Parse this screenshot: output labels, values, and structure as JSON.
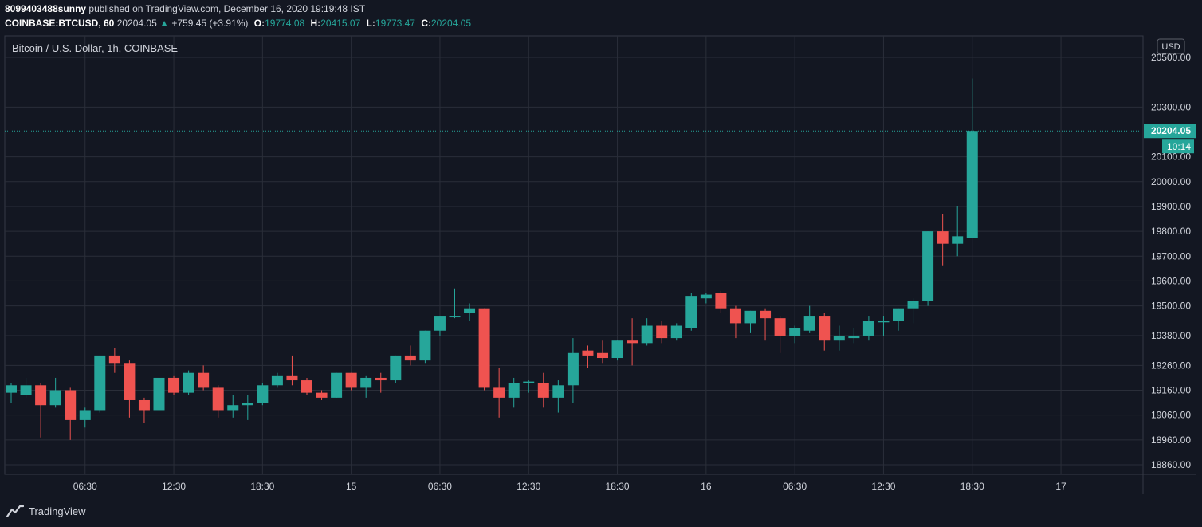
{
  "header": {
    "publisher_user": "8099403488sunny",
    "published_text": "published on TradingView.com, December 16, 2020 19:19:48 IST",
    "symbol_line": "COINBASE:BTCUSD, 60",
    "last": "20204.05",
    "change": "+759.45 (+3.91%)",
    "o_label": "O:",
    "o_value": "19774.08",
    "h_label": "H:",
    "h_value": "20415.07",
    "l_label": "L:",
    "l_value": "19773.47",
    "c_label": "C:",
    "c_value": "20204.05"
  },
  "footer": {
    "brand": "TradingView"
  },
  "colors": {
    "up": "#26a69a",
    "down": "#ef5350",
    "background": "#131722",
    "grid": "#2a2e39"
  },
  "chart_data": {
    "type": "candlestick",
    "title": "Bitcoin / U.S. Dollar, 1h, COINBASE",
    "currency_label": "USD",
    "last_price": "20204.05",
    "countdown": "10:14",
    "ylim": [
      18800,
      20570
    ],
    "y_ticks": [
      {
        "v": 20500,
        "label": "20500.00"
      },
      {
        "v": 20300,
        "label": "20300.00"
      },
      {
        "v": 20100,
        "label": "20100.00"
      },
      {
        "v": 20000,
        "label": "20000.00"
      },
      {
        "v": 19900,
        "label": "19900.00"
      },
      {
        "v": 19800,
        "label": "19800.00"
      },
      {
        "v": 19700,
        "label": "19700.00"
      },
      {
        "v": 19600,
        "label": "19600.00"
      },
      {
        "v": 19500,
        "label": "19500.00"
      },
      {
        "v": 19380,
        "label": "19380.00"
      },
      {
        "v": 19260,
        "label": "19260.00"
      },
      {
        "v": 19160,
        "label": "19160.00"
      },
      {
        "v": 19060,
        "label": "19060.00"
      },
      {
        "v": 18960,
        "label": "18960.00"
      },
      {
        "v": 18860,
        "label": "18860.00"
      }
    ],
    "x_ticks": [
      {
        "i": 5,
        "label": "06:30"
      },
      {
        "i": 11,
        "label": "12:30"
      },
      {
        "i": 17,
        "label": "18:30"
      },
      {
        "i": 23,
        "label": "15"
      },
      {
        "i": 29,
        "label": "06:30"
      },
      {
        "i": 35,
        "label": "12:30"
      },
      {
        "i": 41,
        "label": "18:30"
      },
      {
        "i": 47,
        "label": "16"
      },
      {
        "i": 53,
        "label": "06:30"
      },
      {
        "i": 59,
        "label": "12:30"
      },
      {
        "i": 65,
        "label": "18:30"
      },
      {
        "i": 71,
        "label": "17"
      }
    ],
    "candles": [
      {
        "o": 19150,
        "h": 19190,
        "l": 19110,
        "c": 19180
      },
      {
        "o": 19140,
        "h": 19210,
        "l": 19130,
        "c": 19180
      },
      {
        "o": 19180,
        "h": 19190,
        "l": 18970,
        "c": 19100
      },
      {
        "o": 19100,
        "h": 19210,
        "l": 19090,
        "c": 19160
      },
      {
        "o": 19160,
        "h": 19170,
        "l": 18960,
        "c": 19040
      },
      {
        "o": 19040,
        "h": 19090,
        "l": 19010,
        "c": 19080
      },
      {
        "o": 19080,
        "h": 19300,
        "l": 19070,
        "c": 19300
      },
      {
        "o": 19300,
        "h": 19330,
        "l": 19230,
        "c": 19270
      },
      {
        "o": 19270,
        "h": 19280,
        "l": 19050,
        "c": 19120
      },
      {
        "o": 19120,
        "h": 19130,
        "l": 19030,
        "c": 19080
      },
      {
        "o": 19080,
        "h": 19210,
        "l": 19080,
        "c": 19210
      },
      {
        "o": 19210,
        "h": 19220,
        "l": 19140,
        "c": 19150
      },
      {
        "o": 19150,
        "h": 19240,
        "l": 19140,
        "c": 19230
      },
      {
        "o": 19230,
        "h": 19260,
        "l": 19160,
        "c": 19170
      },
      {
        "o": 19170,
        "h": 19180,
        "l": 19050,
        "c": 19080
      },
      {
        "o": 19080,
        "h": 19140,
        "l": 19050,
        "c": 19100
      },
      {
        "o": 19100,
        "h": 19140,
        "l": 19040,
        "c": 19110
      },
      {
        "o": 19110,
        "h": 19190,
        "l": 19100,
        "c": 19180
      },
      {
        "o": 19180,
        "h": 19230,
        "l": 19170,
        "c": 19220
      },
      {
        "o": 19220,
        "h": 19300,
        "l": 19180,
        "c": 19200
      },
      {
        "o": 19200,
        "h": 19210,
        "l": 19140,
        "c": 19150
      },
      {
        "o": 19150,
        "h": 19160,
        "l": 19120,
        "c": 19130
      },
      {
        "o": 19130,
        "h": 19230,
        "l": 19130,
        "c": 19230
      },
      {
        "o": 19230,
        "h": 19230,
        "l": 19160,
        "c": 19170
      },
      {
        "o": 19170,
        "h": 19220,
        "l": 19130,
        "c": 19210
      },
      {
        "o": 19210,
        "h": 19230,
        "l": 19150,
        "c": 19200
      },
      {
        "o": 19200,
        "h": 19300,
        "l": 19190,
        "c": 19300
      },
      {
        "o": 19300,
        "h": 19340,
        "l": 19260,
        "c": 19280
      },
      {
        "o": 19280,
        "h": 19400,
        "l": 19270,
        "c": 19400
      },
      {
        "o": 19400,
        "h": 19460,
        "l": 19380,
        "c": 19460
      },
      {
        "o": 19460,
        "h": 19570,
        "l": 19450,
        "c": 19460
      },
      {
        "o": 19470,
        "h": 19510,
        "l": 19440,
        "c": 19490
      },
      {
        "o": 19490,
        "h": 19490,
        "l": 19160,
        "c": 19170
      },
      {
        "o": 19170,
        "h": 19250,
        "l": 19050,
        "c": 19130
      },
      {
        "o": 19130,
        "h": 19210,
        "l": 19090,
        "c": 19190
      },
      {
        "o": 19190,
        "h": 19200,
        "l": 19150,
        "c": 19195
      },
      {
        "o": 19190,
        "h": 19230,
        "l": 19090,
        "c": 19130
      },
      {
        "o": 19130,
        "h": 19200,
        "l": 19070,
        "c": 19180
      },
      {
        "o": 19180,
        "h": 19370,
        "l": 19110,
        "c": 19310
      },
      {
        "o": 19320,
        "h": 19340,
        "l": 19250,
        "c": 19300
      },
      {
        "o": 19310,
        "h": 19360,
        "l": 19270,
        "c": 19290
      },
      {
        "o": 19290,
        "h": 19360,
        "l": 19280,
        "c": 19360
      },
      {
        "o": 19360,
        "h": 19450,
        "l": 19260,
        "c": 19350
      },
      {
        "o": 19350,
        "h": 19450,
        "l": 19340,
        "c": 19420
      },
      {
        "o": 19420,
        "h": 19440,
        "l": 19350,
        "c": 19370
      },
      {
        "o": 19370,
        "h": 19430,
        "l": 19360,
        "c": 19420
      },
      {
        "o": 19410,
        "h": 19550,
        "l": 19400,
        "c": 19540
      },
      {
        "o": 19530,
        "h": 19550,
        "l": 19510,
        "c": 19545
      },
      {
        "o": 19550,
        "h": 19560,
        "l": 19470,
        "c": 19490
      },
      {
        "o": 19490,
        "h": 19500,
        "l": 19370,
        "c": 19430
      },
      {
        "o": 19430,
        "h": 19480,
        "l": 19390,
        "c": 19480
      },
      {
        "o": 19480,
        "h": 19490,
        "l": 19360,
        "c": 19450
      },
      {
        "o": 19450,
        "h": 19460,
        "l": 19310,
        "c": 19380
      },
      {
        "o": 19380,
        "h": 19420,
        "l": 19350,
        "c": 19410
      },
      {
        "o": 19400,
        "h": 19500,
        "l": 19390,
        "c": 19460
      },
      {
        "o": 19460,
        "h": 19470,
        "l": 19320,
        "c": 19360
      },
      {
        "o": 19360,
        "h": 19420,
        "l": 19320,
        "c": 19380
      },
      {
        "o": 19370,
        "h": 19410,
        "l": 19350,
        "c": 19380
      },
      {
        "o": 19380,
        "h": 19460,
        "l": 19360,
        "c": 19440
      },
      {
        "o": 19440,
        "h": 19460,
        "l": 19380,
        "c": 19440
      },
      {
        "o": 19440,
        "h": 19490,
        "l": 19400,
        "c": 19490
      },
      {
        "o": 19490,
        "h": 19530,
        "l": 19430,
        "c": 19520
      },
      {
        "o": 19520,
        "h": 19800,
        "l": 19500,
        "c": 19800
      },
      {
        "o": 19800,
        "h": 19870,
        "l": 19660,
        "c": 19750
      },
      {
        "o": 19750,
        "h": 19900,
        "l": 19700,
        "c": 19780
      },
      {
        "o": 19774.08,
        "h": 20415.07,
        "l": 19773.47,
        "c": 20204.05
      }
    ]
  }
}
